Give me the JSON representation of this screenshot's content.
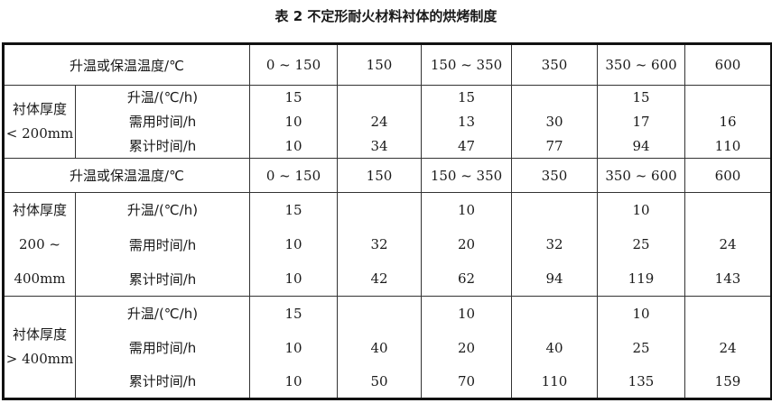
{
  "title": "表 2  不定形耐火材料衬体的烘烤制度",
  "header": {
    "label": "升温或保温温度/℃",
    "columns": [
      "0 ~ 150",
      "150",
      "150 ~ 350",
      "350",
      "350 ~ 600",
      "600"
    ]
  },
  "sections": [
    {
      "group_label": [
        "衬体厚度",
        "< 200mm"
      ],
      "rows": [
        {
          "label": "升温/(℃/h)",
          "values": [
            "15",
            "",
            "15",
            "",
            "15",
            ""
          ]
        },
        {
          "label": "需用时间/h",
          "values": [
            "10",
            "24",
            "13",
            "30",
            "17",
            "16"
          ]
        },
        {
          "label": "累计时间/h",
          "values": [
            "10",
            "34",
            "47",
            "77",
            "94",
            "110"
          ]
        }
      ]
    },
    {
      "group_label": [
        "衬体厚度",
        "200 ~",
        "400mm"
      ],
      "rows": [
        {
          "label": "升温/(℃/h)",
          "values": [
            "15",
            "",
            "10",
            "",
            "10",
            ""
          ]
        },
        {
          "label": "需用时间/h",
          "values": [
            "10",
            "32",
            "20",
            "32",
            "25",
            "24"
          ]
        },
        {
          "label": "累计时间/h",
          "values": [
            "10",
            "42",
            "62",
            "94",
            "119",
            "143"
          ]
        }
      ]
    },
    {
      "group_label": [
        "衬体厚度",
        "> 400mm"
      ],
      "rows": [
        {
          "label": "升温/(℃/h)",
          "values": [
            "15",
            "",
            "10",
            "",
            "10",
            ""
          ]
        },
        {
          "label": "需用时间/h",
          "values": [
            "10",
            "40",
            "20",
            "40",
            "25",
            "24"
          ]
        },
        {
          "label": "累计时间/h",
          "values": [
            "10",
            "50",
            "70",
            "110",
            "135",
            "159"
          ]
        }
      ]
    }
  ]
}
